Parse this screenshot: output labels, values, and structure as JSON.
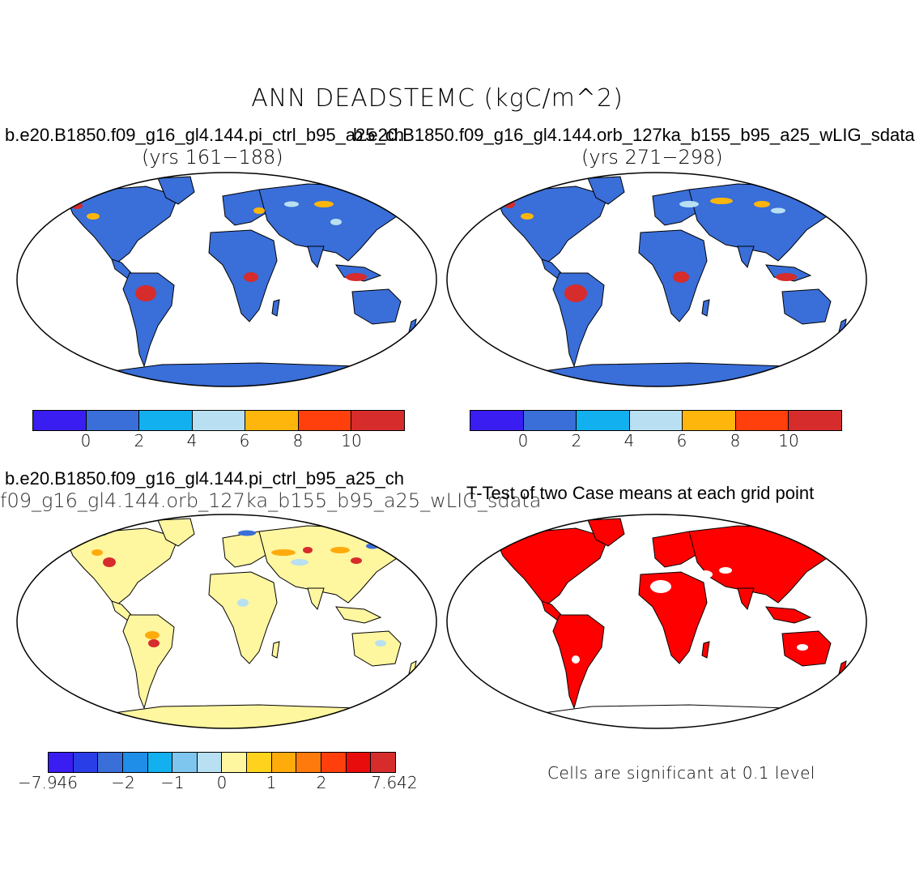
{
  "title": "ANN DEADSTEMC (kgC/m^2)",
  "panel1": {
    "case": "b.e20.B1850.f09_g16_gl4.144.pi_ctrl_b95_a25_ch",
    "years": "(yrs 161−188)"
  },
  "panel2": {
    "case": "b.e20.B1850.f09_g16_gl4.144.orb_127ka_b155_b95_a25_wLIG_sdata",
    "years": "(yrs 271−298)"
  },
  "panel3": {
    "case": "b.e20.B1850.f09_g16_gl4.144.pi_ctrl_b95_a25_ch",
    "subtitle": "f09_g16_gl4.144.orb_127ka_b155_b95_a25_wLIG_sdata"
  },
  "panel4": {
    "title": "T-Test of two Case means at each grid point",
    "note": "Cells are significant at 0.1 level"
  },
  "colorbar_abs": {
    "colors": [
      "#3a1df0",
      "#3a6ed8",
      "#12b0ee",
      "#b9e0f2",
      "#ffb60c",
      "#ff3f0c",
      "#d62c2c"
    ],
    "ticks": [
      "0",
      "2",
      "4",
      "6",
      "8",
      "10"
    ]
  },
  "colorbar_diff": {
    "colors": [
      "#3a1df0",
      "#2a3ee8",
      "#3a6ed8",
      "#1f8ee8",
      "#12b0ee",
      "#7fc6ef",
      "#b9e0f2",
      "#fff6a0",
      "#ffd21e",
      "#ffab0c",
      "#ff7a0c",
      "#ff3f0c",
      "#e80c0c",
      "#d62c2c"
    ],
    "ticks": [
      "−7.946",
      "−2",
      "−1",
      "0",
      "1",
      "2",
      "7.642"
    ]
  },
  "map_colors": {
    "land_base": "#3a6ed8",
    "land_diff": "#fff6a0",
    "significant": "#ff0000",
    "hot": "#d62c2c",
    "warm": "#ffb60c",
    "light": "#b9e0f2"
  }
}
